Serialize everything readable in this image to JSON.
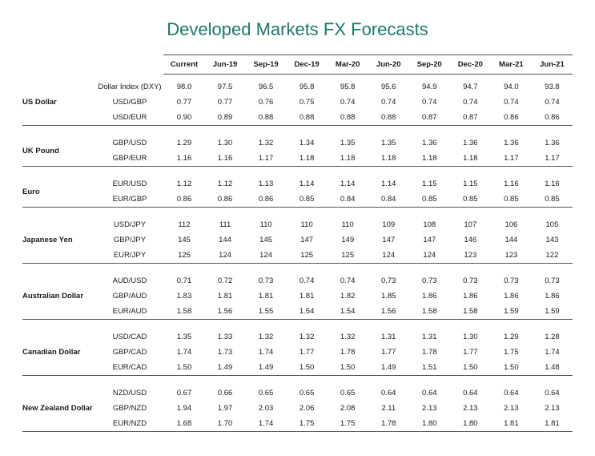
{
  "title": "Developed Markets FX Forecasts",
  "title_color": "#1b7a6b",
  "columns": [
    "Current",
    "Jun-19",
    "Sep-19",
    "Dec-19",
    "Mar-20",
    "Jun-20",
    "Sep-20",
    "Dec-20",
    "Mar-21",
    "Jun-21"
  ],
  "style": {
    "title_fontsize": 22,
    "header_fontsize": 9.5,
    "cell_fontsize": 9.5,
    "border_color": "#555555",
    "background_color": "#ffffff",
    "text_color": "#1a1a1a",
    "font_family": "Arial"
  },
  "groups": [
    {
      "label": "US Dollar",
      "rows": [
        {
          "label": "Dollar Index (DXY)",
          "values": [
            "98.0",
            "97.5",
            "96.5",
            "95.8",
            "95.8",
            "95.6",
            "94.9",
            "94.7",
            "94.0",
            "93.8"
          ]
        },
        {
          "label": "USD/GBP",
          "values": [
            "0.77",
            "0.77",
            "0.76",
            "0.75",
            "0.74",
            "0.74",
            "0.74",
            "0.74",
            "0.74",
            "0.74"
          ]
        },
        {
          "label": "USD/EUR",
          "values": [
            "0.90",
            "0.89",
            "0.88",
            "0.88",
            "0.88",
            "0.88",
            "0.87",
            "0.87",
            "0.86",
            "0.86"
          ]
        }
      ]
    },
    {
      "label": "UK Pound",
      "rows": [
        {
          "label": "GBP/USD",
          "values": [
            "1.29",
            "1.30",
            "1.32",
            "1.34",
            "1.35",
            "1.35",
            "1.36",
            "1.36",
            "1.36",
            "1.36"
          ]
        },
        {
          "label": "GBP/EUR",
          "values": [
            "1.16",
            "1.16",
            "1.17",
            "1.18",
            "1.18",
            "1.18",
            "1.18",
            "1.18",
            "1.17",
            "1.17"
          ]
        }
      ]
    },
    {
      "label": "Euro",
      "rows": [
        {
          "label": "EUR/USD",
          "values": [
            "1.12",
            "1.12",
            "1.13",
            "1.14",
            "1.14",
            "1.14",
            "1.15",
            "1.15",
            "1.16",
            "1.16"
          ]
        },
        {
          "label": "EUR/GBP",
          "values": [
            "0.86",
            "0.86",
            "0.86",
            "0.85",
            "0.84",
            "0.84",
            "0.85",
            "0.85",
            "0.85",
            "0.85"
          ]
        }
      ]
    },
    {
      "label": "Japanese Yen",
      "rows": [
        {
          "label": "USD/JPY",
          "values": [
            "112",
            "111",
            "110",
            "110",
            "110",
            "109",
            "108",
            "107",
            "106",
            "105"
          ]
        },
        {
          "label": "GBP/JPY",
          "values": [
            "145",
            "144",
            "145",
            "147",
            "149",
            "147",
            "147",
            "146",
            "144",
            "143"
          ]
        },
        {
          "label": "EUR/JPY",
          "values": [
            "125",
            "124",
            "124",
            "125",
            "125",
            "124",
            "124",
            "123",
            "123",
            "122"
          ]
        }
      ]
    },
    {
      "label": "Australian Dollar",
      "rows": [
        {
          "label": "AUD/USD",
          "values": [
            "0.71",
            "0.72",
            "0.73",
            "0.74",
            "0.74",
            "0.73",
            "0.73",
            "0.73",
            "0.73",
            "0.73"
          ]
        },
        {
          "label": "GBP/AUD",
          "values": [
            "1.83",
            "1.81",
            "1.81",
            "1.81",
            "1.82",
            "1.85",
            "1.86",
            "1.86",
            "1.86",
            "1.86"
          ]
        },
        {
          "label": "EUR/AUD",
          "values": [
            "1.58",
            "1.56",
            "1.55",
            "1.54",
            "1.54",
            "1.56",
            "1.58",
            "1.58",
            "1.59",
            "1.59"
          ]
        }
      ]
    },
    {
      "label": "Canadian Dollar",
      "rows": [
        {
          "label": "USD/CAD",
          "values": [
            "1.35",
            "1.33",
            "1.32",
            "1.32",
            "1.32",
            "1.31",
            "1.31",
            "1.30",
            "1.29",
            "1.28"
          ]
        },
        {
          "label": "GBP/CAD",
          "values": [
            "1.74",
            "1.73",
            "1.74",
            "1.77",
            "1.78",
            "1.77",
            "1.78",
            "1.77",
            "1.75",
            "1.74"
          ]
        },
        {
          "label": "EUR/CAD",
          "values": [
            "1.50",
            "1.49",
            "1.49",
            "1.50",
            "1.50",
            "1.49",
            "1.51",
            "1.50",
            "1.50",
            "1.48"
          ]
        }
      ]
    },
    {
      "label": "New Zealand Dollar",
      "rows": [
        {
          "label": "NZD/USD",
          "values": [
            "0.67",
            "0.66",
            "0.65",
            "0.65",
            "0.65",
            "0.64",
            "0.64",
            "0.64",
            "0.64",
            "0.64"
          ]
        },
        {
          "label": "GBP/NZD",
          "values": [
            "1.94",
            "1.97",
            "2.03",
            "2.06",
            "2.08",
            "2.11",
            "2.13",
            "2.13",
            "2.13",
            "2.13"
          ]
        },
        {
          "label": "EUR/NZD",
          "values": [
            "1.68",
            "1.70",
            "1.74",
            "1.75",
            "1.75",
            "1.78",
            "1.80",
            "1.80",
            "1.81",
            "1.81"
          ]
        }
      ]
    }
  ]
}
